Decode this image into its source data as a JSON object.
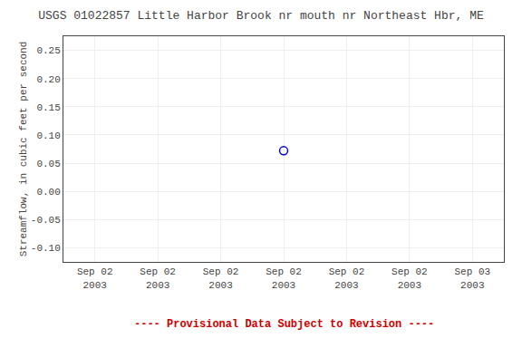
{
  "chart_data": {
    "type": "scatter",
    "title": "USGS 01022857 Little Harbor Brook nr mouth nr Northeast Hbr, ME",
    "y_label": "Streamflow, in cubic feet per second",
    "categories": [
      "Sep 02\n2003",
      "Sep 02\n2003",
      "Sep 02\n2003",
      "Sep 02\n2003",
      "Sep 02\n2003",
      "Sep 02\n2003",
      "Sep 03\n2003"
    ],
    "values": [
      null,
      null,
      null,
      0.072,
      null,
      null,
      null
    ],
    "color": "#0000cc",
    "marker": "circle",
    "ylim": [
      -0.125,
      0.275
    ],
    "yticks": [
      {
        "value": -0.1,
        "label": "-0.10"
      },
      -0.05,
      {
        "value": 0,
        "label": "0.00"
      },
      0.05,
      {
        "value": 0.1,
        "label": "0.10"
      },
      0.15,
      {
        "value": 0.2,
        "label": "0.20"
      },
      0.25
    ],
    "grid": true,
    "annotations": [
      {
        "text": "---- Provisional Data Subject to Revision ----",
        "color": "#cc0000"
      }
    ]
  }
}
